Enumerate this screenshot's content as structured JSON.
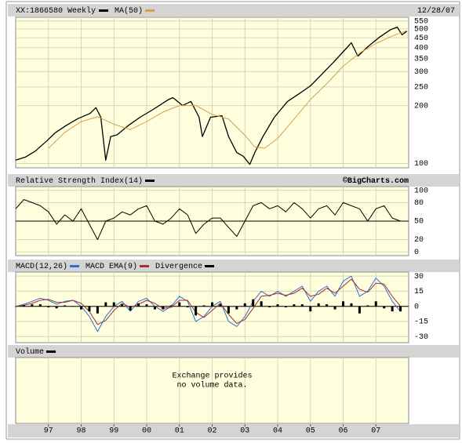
{
  "chart_data": [
    {
      "type": "line",
      "title": "XX:1866580 Weekly",
      "date": "12/28/07",
      "log_scale": true,
      "ylim": [
        95,
        575
      ],
      "yticks": [
        100,
        200,
        250,
        300,
        350,
        400,
        450,
        500,
        550
      ],
      "grid": true,
      "series": [
        {
          "color": "#000000",
          "x": [
            1996.0,
            1996.3,
            1996.6,
            1996.95,
            1997.2,
            1997.55,
            1997.9,
            1998.27,
            1998.45,
            1998.6,
            1998.75,
            1998.9,
            1999.1,
            1999.45,
            1999.8,
            2000.2,
            2000.65,
            2000.8,
            2001.1,
            2001.35,
            2001.6,
            2001.7,
            2001.95,
            2002.3,
            2002.5,
            2002.75,
            2002.95,
            2003.15,
            2003.3,
            2003.55,
            2003.9,
            2004.3,
            2004.65,
            2005.0,
            2005.35,
            2005.7,
            2006.1,
            2006.25,
            2006.45,
            2006.75,
            2007.1,
            2007.45,
            2007.65,
            2007.8,
            2007.95
          ],
          "values": [
            104,
            108,
            116,
            131,
            144,
            158,
            171,
            182,
            195,
            174,
            104,
            138,
            141,
            158,
            174,
            191,
            214,
            220,
            200,
            210,
            174,
            138,
            174,
            177,
            138,
            114,
            109,
            99,
            114,
            138,
            174,
            210,
            230,
            253,
            291,
            335,
            397,
            424,
            361,
            404,
            452,
            496,
            511,
            466,
            487
          ]
        },
        {
          "name": "MA(50)",
          "color": "#d4a04a",
          "x": [
            1997.0,
            1997.5,
            1998.0,
            1998.5,
            1999.0,
            1999.5,
            2000.0,
            2000.5,
            2001.0,
            2001.5,
            2002.0,
            2002.5,
            2003.0,
            2003.3,
            2003.6,
            2004.0,
            2004.5,
            2005.0,
            2005.5,
            2006.0,
            2006.5,
            2007.0,
            2007.5,
            2007.95
          ],
          "values": [
            120,
            145,
            165,
            175,
            160,
            150,
            165,
            185,
            200,
            200,
            180,
            170,
            140,
            122,
            120,
            135,
            170,
            215,
            260,
            320,
            375,
            420,
            460,
            490
          ]
        }
      ]
    },
    {
      "type": "line",
      "credit": "©BigCharts.com",
      "ylim": [
        -6,
        106
      ],
      "yticks": [
        100,
        80,
        50,
        20,
        0
      ],
      "reference_line": 50,
      "grid": true,
      "x": [
        1996,
        1996.25,
        1996.5,
        1996.75,
        1997,
        1997.25,
        1997.5,
        1997.75,
        1998,
        1998.25,
        1998.5,
        1998.75,
        1999,
        1999.25,
        1999.5,
        1999.75,
        2000,
        2000.25,
        2000.5,
        2000.75,
        2001,
        2001.25,
        2001.5,
        2001.75,
        2002,
        2002.25,
        2002.5,
        2002.75,
        2003,
        2003.25,
        2003.5,
        2003.75,
        2004,
        2004.25,
        2004.5,
        2004.75,
        2005,
        2005.25,
        2005.5,
        2005.75,
        2006,
        2006.25,
        2006.5,
        2006.75,
        2007,
        2007.25,
        2007.5,
        2007.75
      ],
      "series": [
        {
          "name": "Relative Strength Index(14)",
          "color": "#000000",
          "values": [
            70,
            85,
            80,
            75,
            65,
            45,
            60,
            50,
            70,
            45,
            20,
            50,
            55,
            65,
            60,
            70,
            75,
            50,
            45,
            55,
            70,
            60,
            30,
            45,
            55,
            55,
            40,
            25,
            50,
            75,
            80,
            70,
            75,
            65,
            80,
            70,
            55,
            70,
            75,
            60,
            80,
            75,
            70,
            50,
            70,
            75,
            55,
            50
          ]
        }
      ]
    },
    {
      "type": "line",
      "ylim": [
        -36,
        34
      ],
      "yticks": [
        30,
        15,
        0,
        -15,
        -30
      ],
      "reference_line": 0,
      "grid": true,
      "x": [
        1996,
        1996.25,
        1996.5,
        1996.75,
        1997,
        1997.25,
        1997.5,
        1997.75,
        1998,
        1998.25,
        1998.5,
        1998.75,
        1999,
        1999.25,
        1999.5,
        1999.75,
        2000,
        2000.25,
        2000.5,
        2000.75,
        2001,
        2001.25,
        2001.5,
        2001.75,
        2002,
        2002.25,
        2002.5,
        2002.75,
        2003,
        2003.25,
        2003.5,
        2003.75,
        2004,
        2004.25,
        2004.5,
        2004.75,
        2005,
        2005.25,
        2005.5,
        2005.75,
        2006,
        2006.25,
        2006.5,
        2006.75,
        2007,
        2007.25,
        2007.5,
        2007.75
      ],
      "series": [
        {
          "name": "MACD(12,26)",
          "color": "#2f6fd6",
          "values": [
            0,
            2,
            5,
            8,
            6,
            2,
            5,
            6,
            0,
            -10,
            -25,
            -10,
            0,
            5,
            -5,
            5,
            8,
            0,
            -5,
            0,
            10,
            5,
            -15,
            -10,
            0,
            5,
            -15,
            -20,
            -10,
            5,
            15,
            10,
            15,
            10,
            15,
            20,
            5,
            15,
            20,
            10,
            25,
            30,
            10,
            15,
            28,
            20,
            5,
            -5
          ]
        },
        {
          "name": "MACD EMA(9)",
          "color": "#a03030",
          "values": [
            0,
            1,
            3,
            6,
            7,
            4,
            4,
            6,
            3,
            -5,
            -18,
            -14,
            -4,
            3,
            -1,
            2,
            6,
            3,
            -2,
            -1,
            6,
            6,
            -6,
            -11,
            -4,
            3,
            -8,
            -17,
            -13,
            -2,
            10,
            11,
            13,
            11,
            13,
            18,
            10,
            12,
            18,
            13,
            20,
            27,
            17,
            14,
            23,
            22,
            10,
            0
          ]
        },
        {
          "name": "Divergence",
          "color": "#000000",
          "type": "bar",
          "values": [
            0,
            1,
            2,
            2,
            -1,
            -2,
            1,
            0,
            -3,
            -5,
            -7,
            4,
            4,
            2,
            -4,
            3,
            2,
            -3,
            -3,
            1,
            4,
            -1,
            -9,
            1,
            4,
            2,
            -7,
            -3,
            3,
            7,
            5,
            -1,
            2,
            -1,
            2,
            2,
            -5,
            3,
            2,
            -3,
            5,
            3,
            -7,
            1,
            5,
            -2,
            -5,
            -5
          ]
        }
      ]
    },
    {
      "type": "line",
      "annotations": [
        "Exchange provides",
        "no volume data."
      ],
      "xlim": [
        1996,
        2008
      ],
      "xticks": [
        {
          "value": 1997,
          "label": "97"
        },
        {
          "value": 1998,
          "label": "98"
        },
        {
          "value": 1999,
          "label": "99"
        },
        {
          "value": 2000,
          "label": "00"
        },
        {
          "value": 2001,
          "label": "01"
        },
        {
          "value": 2002,
          "label": "02"
        },
        {
          "value": 2003,
          "label": "03"
        },
        {
          "value": 2004,
          "label": "04"
        },
        {
          "value": 2005,
          "label": "05"
        },
        {
          "value": 2006,
          "label": "06"
        },
        {
          "value": 2007,
          "label": "07"
        }
      ],
      "grid": true,
      "series": [
        {
          "name": "Volume",
          "color": "#000000",
          "values": []
        }
      ]
    }
  ]
}
